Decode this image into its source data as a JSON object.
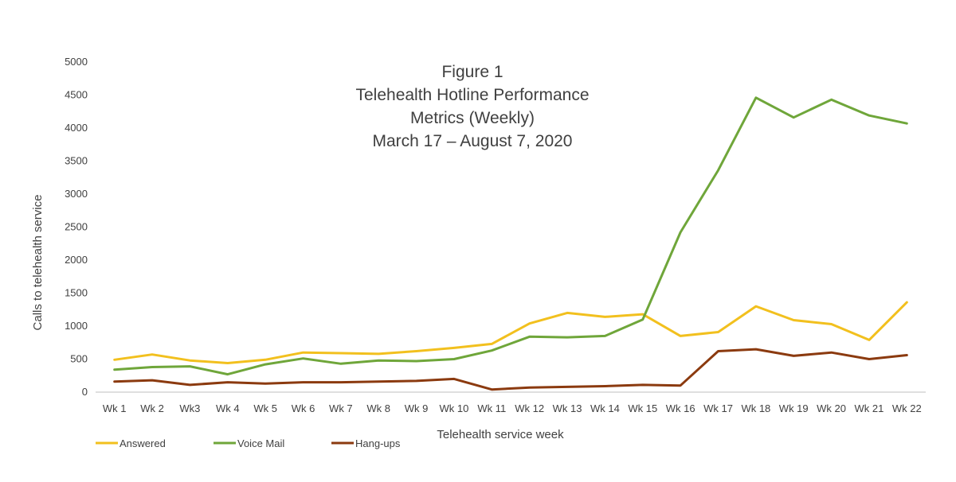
{
  "chart_data": {
    "type": "line",
    "title_lines": [
      "Figure 1",
      "Telehealth Hotline Performance",
      "Metrics (Weekly)",
      "March 17 – August 7, 2020"
    ],
    "xlabel": "Telehealth service week",
    "ylabel": "Calls to telehealth service",
    "ylim": [
      0,
      5000
    ],
    "yticks": [
      "0",
      "500",
      "1000",
      "1500",
      "2000",
      "2500",
      "3000",
      "3500",
      "4000",
      "4500",
      "5000"
    ],
    "categories": [
      "Wk 1",
      "Wk 2",
      "Wk3",
      "Wk 4",
      "Wk 5",
      "Wk 6",
      "Wk 7",
      "Wk 8",
      "Wk 9",
      "Wk 10",
      "Wk 11",
      "Wk 12",
      "Wk 13",
      "Wk 14",
      "Wk 15",
      "Wk 16",
      "Wk 17",
      "Wk 18",
      "Wk 19",
      "Wk 20",
      "Wk 21",
      "Wk 22"
    ],
    "series": [
      {
        "name": "Answered",
        "color": "#F2C01E",
        "values": [
          490,
          570,
          480,
          440,
          490,
          600,
          590,
          580,
          620,
          670,
          730,
          1040,
          1200,
          1140,
          1180,
          850,
          910,
          1300,
          1090,
          1030,
          790,
          1360
        ]
      },
      {
        "name": "Voice Mail",
        "color": "#6FA63A",
        "values": [
          340,
          380,
          390,
          270,
          420,
          510,
          430,
          480,
          470,
          500,
          630,
          840,
          830,
          850,
          1100,
          2420,
          3360,
          4460,
          4160,
          4430,
          4190,
          4070
        ]
      },
      {
        "name": "Hang-ups",
        "color": "#8B3A0F",
        "values": [
          160,
          180,
          110,
          150,
          130,
          150,
          150,
          160,
          170,
          200,
          40,
          70,
          80,
          90,
          110,
          100,
          620,
          650,
          550,
          600,
          500,
          560
        ]
      }
    ],
    "grid": false,
    "legend_position": "bottom-left"
  }
}
